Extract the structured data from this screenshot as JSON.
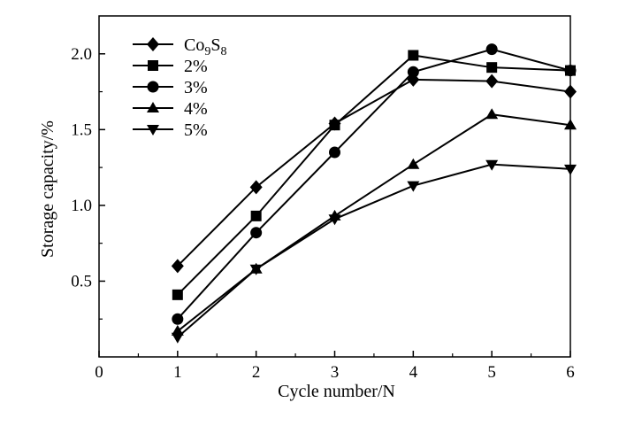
{
  "chart_data": {
    "type": "line",
    "xlabel": "Cycle number/N",
    "ylabel": "Storage capacity/%",
    "xlim": [
      0,
      6
    ],
    "ylim": [
      0,
      2.25
    ],
    "xticks": [
      "0",
      "1",
      "2",
      "3",
      "4",
      "5",
      "6"
    ],
    "yticks": [
      "0.5",
      "1.0",
      "1.5",
      "2.0"
    ],
    "grid": false,
    "legend_position": "top-left",
    "x": [
      1,
      2,
      3,
      4,
      5,
      6
    ],
    "series": [
      {
        "name": "Co9S8",
        "name_base": "Co",
        "name_sub1": "9",
        "name_mid": "S",
        "name_sub2": "8",
        "marker": "diamond",
        "values": [
          0.6,
          1.12,
          1.54,
          1.83,
          1.82,
          1.75
        ]
      },
      {
        "name": "2%",
        "marker": "square",
        "values": [
          0.41,
          0.93,
          1.53,
          1.99,
          1.91,
          1.89
        ]
      },
      {
        "name": "3%",
        "marker": "circle",
        "values": [
          0.25,
          0.82,
          1.35,
          1.88,
          2.03,
          1.89
        ]
      },
      {
        "name": "4%",
        "marker": "triangle-up",
        "values": [
          0.17,
          0.58,
          0.93,
          1.27,
          1.6,
          1.53
        ]
      },
      {
        "name": "5%",
        "marker": "triangle-down",
        "values": [
          0.13,
          0.58,
          0.91,
          1.13,
          1.27,
          1.24
        ]
      }
    ]
  }
}
